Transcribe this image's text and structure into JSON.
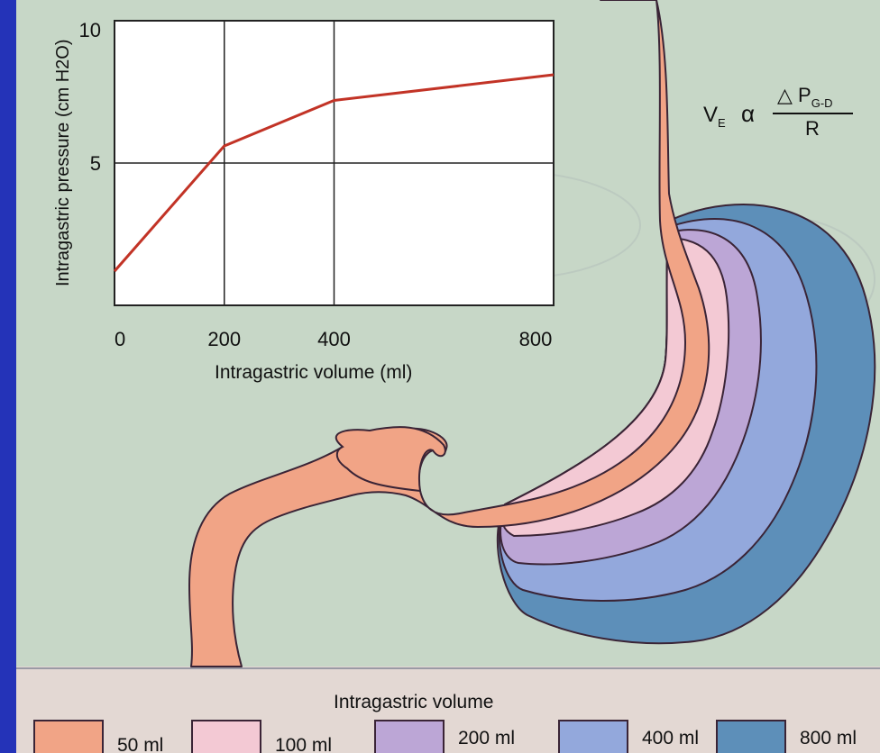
{
  "chart_data": {
    "type": "line",
    "xlabel": "Intragastric volume (ml)",
    "ylabel": "Intragastric pressure (cm H2O)",
    "xlim": [
      0,
      800
    ],
    "ylim": [
      0,
      10
    ],
    "x_ticks": [
      "0",
      "200",
      "400",
      "800"
    ],
    "y_ticks": [
      "10",
      "5"
    ],
    "grid": true,
    "series": [
      {
        "x": [
          0,
          200,
          400,
          800
        ],
        "y": [
          1.2,
          5.6,
          7.2,
          8.1
        ]
      }
    ]
  },
  "formula": {
    "lhs": "V",
    "lhs_sub": "E",
    "op": "α",
    "numerator": "△ P",
    "numerator_sub": "G-D",
    "denominator": "R"
  },
  "legend": {
    "title": "Intragastric volume",
    "items": [
      {
        "label": "50 ml",
        "color": "#f1a486"
      },
      {
        "label": "100 ml",
        "color": "#f3c9d4"
      },
      {
        "label": "200 ml",
        "color": "#bca6d6"
      },
      {
        "label": "400 ml",
        "color": "#93a8dc"
      },
      {
        "label": "800 ml",
        "color": "#5d8fb9"
      }
    ]
  },
  "colors": {
    "frame": "#2433b8",
    "background": "#c6d6c6",
    "curve": "#c23326",
    "stomach_outline": "#3a2436"
  }
}
